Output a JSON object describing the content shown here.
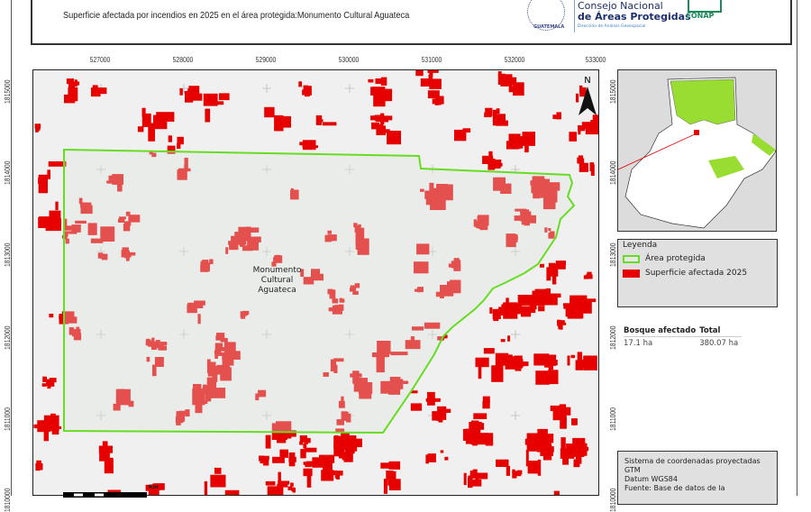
{
  "header": {
    "subtitle": "Superficie afectada por incendios en 2025 en el área protegida:Monumento Cultural Aguateca",
    "logo_seal_text": "GUATEMALA",
    "logo_org_top": "Consejo Nacional",
    "logo_org_title": "de Áreas Protegidas",
    "logo_org_sub": "Dirección de Análisis Geoespacial",
    "logo_conap": "CONAP"
  },
  "map": {
    "x_ticks": [
      "527000",
      "528000",
      "529000",
      "530000",
      "531000",
      "532000",
      "533000"
    ],
    "y_ticks": [
      "1815000",
      "1814000",
      "1813000",
      "1812000",
      "1811000",
      "1810000"
    ],
    "area_label_lines": [
      "Monumento",
      "Cultural",
      "Aguateca"
    ],
    "north_label": "N",
    "scale_unit": "Km",
    "colors": {
      "protected_outline": "#66dd22",
      "affected_fill": "#e60000",
      "background": "#f0f0f0"
    }
  },
  "legend": {
    "title": "Leyenda",
    "items": [
      {
        "label": "Área protegida",
        "style": "outline",
        "color": "#66dd22"
      },
      {
        "label": "Superficie afectada 2025",
        "style": "fill",
        "color": "#e60000"
      }
    ]
  },
  "stats": {
    "headers": [
      "Bosque afectado",
      "Total"
    ],
    "row": [
      "17.1 ha",
      "380.07 ha"
    ]
  },
  "info": {
    "lines": [
      "Sistema de coordenadas proyectadas",
      "GTM",
      "Datum WGS84",
      "Fuente: Base de datos de la"
    ]
  }
}
